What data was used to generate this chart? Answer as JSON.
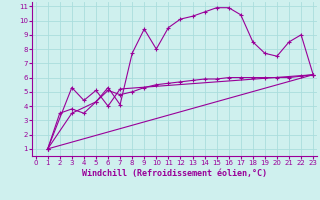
{
  "background_color": "#cff0ee",
  "grid_color": "#aadddd",
  "line_color": "#990099",
  "xlabel": "Windchill (Refroidissement éolien,°C)",
  "xlabel_color": "#990099",
  "ylabel_ticks": [
    1,
    2,
    3,
    4,
    5,
    6,
    7,
    8,
    9,
    10,
    11
  ],
  "xlabel_ticks": [
    0,
    1,
    2,
    3,
    4,
    5,
    6,
    7,
    8,
    9,
    10,
    11,
    12,
    13,
    14,
    15,
    16,
    17,
    18,
    19,
    20,
    21,
    22,
    23
  ],
  "xlim": [
    -0.3,
    23.3
  ],
  "ylim": [
    0.5,
    11.3
  ],
  "line1_x": [
    1,
    2,
    3,
    4,
    5,
    6,
    7,
    8,
    9,
    10,
    11,
    12,
    13,
    14,
    15,
    16,
    17,
    18,
    19,
    20,
    21,
    22,
    23
  ],
  "line1_y": [
    1.0,
    3.5,
    3.8,
    3.5,
    4.3,
    5.3,
    4.1,
    7.7,
    9.4,
    8.0,
    9.5,
    10.1,
    10.3,
    10.6,
    10.9,
    10.9,
    10.4,
    8.5,
    7.7,
    7.5,
    8.5,
    9.0,
    6.2
  ],
  "line2_x": [
    1,
    3,
    4,
    5,
    6,
    7,
    23
  ],
  "line2_y": [
    1.0,
    5.3,
    4.4,
    5.1,
    4.0,
    5.2,
    6.2
  ],
  "line3_x": [
    1,
    23
  ],
  "line3_y": [
    1.0,
    6.2
  ],
  "line4_x": [
    1,
    3,
    5,
    6,
    7,
    8,
    9,
    10,
    11,
    12,
    13,
    14,
    15,
    16,
    17,
    18,
    19,
    20,
    21,
    22,
    23
  ],
  "line4_y": [
    1.0,
    3.5,
    4.3,
    5.1,
    4.8,
    5.0,
    5.3,
    5.5,
    5.6,
    5.7,
    5.8,
    5.9,
    5.9,
    6.0,
    6.0,
    6.0,
    6.0,
    6.0,
    6.0,
    6.1,
    6.2
  ],
  "tick_fontsize": 5.0,
  "xlabel_fontsize": 6.0,
  "figsize": [
    3.2,
    2.0
  ],
  "dpi": 100
}
